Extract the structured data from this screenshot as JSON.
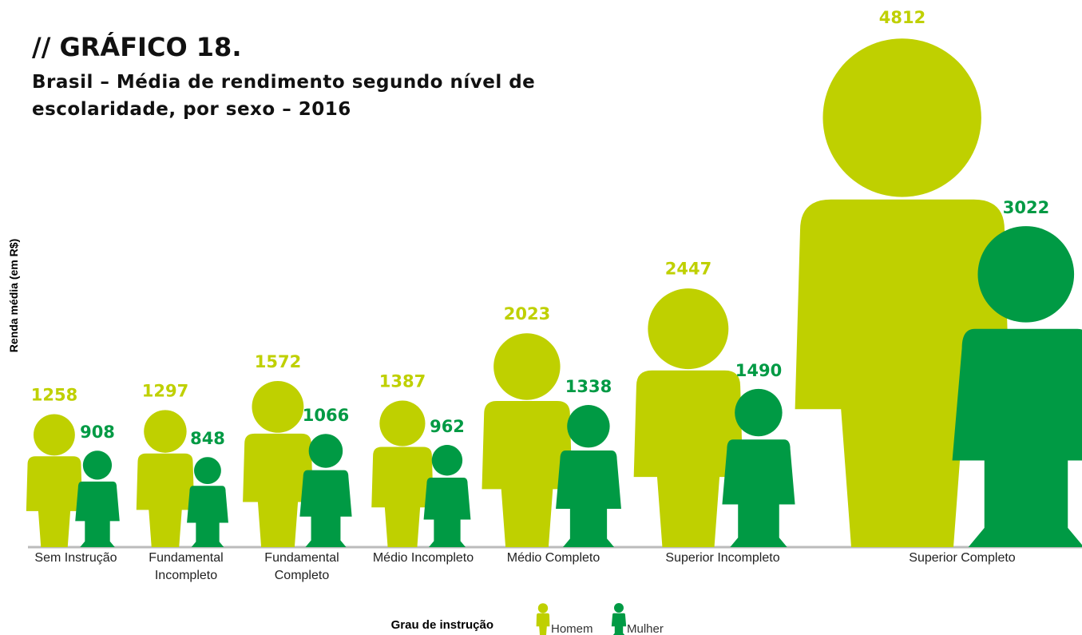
{
  "chart_data": {
    "type": "pictogram",
    "title": "// GRÁFICO 18.",
    "subtitle": "Brasil – Média de rendimento segundo nível de escolaridade, por sexo – 2016",
    "y_axis_label": "Renda média (em R$)",
    "legend_title": "Grau de instrução",
    "categories": [
      "Sem Instrução",
      "Fundamental Incompleto",
      "Fundamental Completo",
      "Médio Incompleto",
      "Médio Completo",
      "Superior Incompleto",
      "Superior Completo"
    ],
    "series": [
      {
        "name": "Homem",
        "color": "#bfd000",
        "values": [
          1258,
          1297,
          1572,
          1387,
          2023,
          2447,
          4812
        ]
      },
      {
        "name": "Mulher",
        "color": "#009a44",
        "values": [
          908,
          848,
          1066,
          962,
          1338,
          1490,
          3022
        ]
      }
    ]
  }
}
